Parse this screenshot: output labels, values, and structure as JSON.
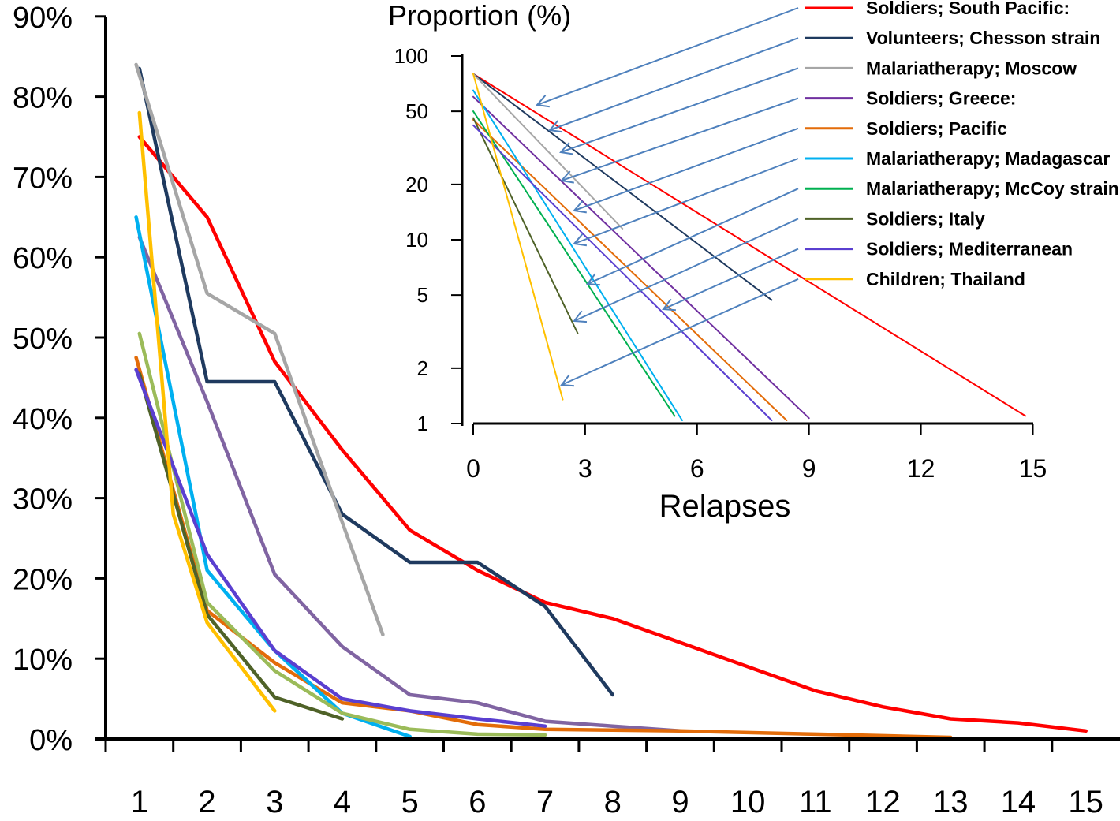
{
  "chart_data": [
    {
      "type": "line",
      "x_ticks": [
        1,
        2,
        3,
        4,
        5,
        6,
        7,
        8,
        9,
        10,
        11,
        12,
        13,
        14,
        15
      ],
      "y_ticks": [
        "0%",
        "10%",
        "20%",
        "30%",
        "40%",
        "50%",
        "60%",
        "70%",
        "80%",
        "90%"
      ],
      "ylim": [
        0,
        90
      ],
      "xlim": [
        0.5,
        15.5
      ],
      "series": [
        {
          "color": "#ff0000",
          "points": [
            [
              1,
              75
            ],
            [
              2,
              65
            ],
            [
              3,
              47
            ],
            [
              4,
              36
            ],
            [
              5,
              26
            ],
            [
              6,
              21
            ],
            [
              7,
              17
            ],
            [
              8,
              15
            ],
            [
              9,
              12
            ],
            [
              10,
              9
            ],
            [
              11,
              6
            ],
            [
              12,
              4
            ],
            [
              13,
              2.5
            ],
            [
              14,
              2
            ],
            [
              15,
              1
            ]
          ]
        },
        {
          "color": "#1f3a5f",
          "points": [
            [
              1,
              83.5
            ],
            [
              2,
              44.5
            ],
            [
              3,
              44.5
            ],
            [
              4,
              28
            ],
            [
              5,
              22
            ],
            [
              6,
              22
            ],
            [
              7,
              16.5
            ],
            [
              8,
              5.5
            ]
          ]
        },
        {
          "color": "#a6a6a6",
          "points": [
            [
              0.95,
              84
            ],
            [
              2,
              55.5
            ],
            [
              3,
              50.5
            ],
            [
              4,
              27
            ],
            [
              4.6,
              13
            ]
          ]
        },
        {
          "color": "#8064a2",
          "points": [
            [
              1,
              62.5
            ],
            [
              2,
              42
            ],
            [
              3,
              20.5
            ],
            [
              4,
              11.5
            ],
            [
              5,
              5.5
            ],
            [
              6,
              4.5
            ],
            [
              7,
              2.2
            ],
            [
              8,
              1.6
            ],
            [
              9,
              1
            ]
          ]
        },
        {
          "color": "#e36c09",
          "points": [
            [
              0.95,
              47.5
            ],
            [
              2,
              16
            ],
            [
              3,
              9.5
            ],
            [
              4,
              4.5
            ],
            [
              5,
              3.5
            ],
            [
              6,
              1.8
            ],
            [
              7,
              1.2
            ],
            [
              8,
              1.1
            ],
            [
              9,
              1
            ],
            [
              10,
              0.8
            ],
            [
              11,
              0.6
            ],
            [
              12,
              0.4
            ],
            [
              13,
              0.2
            ]
          ]
        },
        {
          "color": "#00b0f0",
          "points": [
            [
              0.95,
              65
            ],
            [
              2,
              21
            ],
            [
              3,
              11
            ],
            [
              4,
              3.2
            ],
            [
              5,
              0.3
            ]
          ]
        },
        {
          "color": "#9bbb59",
          "points": [
            [
              1,
              50.5
            ],
            [
              2,
              17
            ],
            [
              3,
              8.5
            ],
            [
              4,
              3.2
            ],
            [
              5,
              1.2
            ],
            [
              6,
              0.6
            ],
            [
              7,
              0.5
            ]
          ]
        },
        {
          "color": "#4f6228",
          "points": [
            [
              1,
              45.5
            ],
            [
              2,
              15.5
            ],
            [
              3,
              5.2
            ],
            [
              4,
              2.5
            ]
          ]
        },
        {
          "color": "#5a3fd0",
          "points": [
            [
              0.95,
              46
            ],
            [
              2,
              23
            ],
            [
              3,
              11
            ],
            [
              4,
              5
            ],
            [
              5,
              3.5
            ],
            [
              6,
              2.5
            ],
            [
              7,
              1.6
            ]
          ]
        },
        {
          "color": "#ffc000",
          "points": [
            [
              1,
              78
            ],
            [
              1.5,
              28
            ],
            [
              2,
              14.5
            ],
            [
              3,
              3.5
            ]
          ]
        }
      ]
    },
    {
      "type": "line",
      "title": "Proportion (%)",
      "xlabel": "Relapses",
      "x_ticks": [
        0,
        3,
        6,
        9,
        12,
        15
      ],
      "y_ticks": [
        "100",
        "50",
        "20",
        "10",
        "5",
        "2",
        "1"
      ],
      "y_scale": "log",
      "legend_position": "top-right",
      "series": [
        {
          "name": "Soldiers;  South Pacific:",
          "color": "#ff0000",
          "points": [
            [
              0,
              80
            ],
            [
              14.8,
              1.1
            ]
          ]
        },
        {
          "name": "Volunteers;  Chesson strain",
          "color": "#1f3a5f",
          "points": [
            [
              0,
              80
            ],
            [
              8,
              4.7
            ]
          ]
        },
        {
          "name": "Malariatherapy;  Moscow",
          "color": "#a6a6a6",
          "points": [
            [
              0,
              80
            ],
            [
              4,
              11.5
            ]
          ]
        },
        {
          "name": "Soldiers;  Greece:",
          "color": "#7030a0",
          "points": [
            [
              0,
              60
            ],
            [
              9,
              1.07
            ]
          ]
        },
        {
          "name": "Soldiers;  Pacific",
          "color": "#e36c09",
          "points": [
            [
              0,
              45
            ],
            [
              8.4,
              1.04
            ]
          ]
        },
        {
          "name": "Malariatherapy; Madagascar",
          "color": "#00b0f0",
          "points": [
            [
              0,
              65
            ],
            [
              5.6,
              1.04
            ]
          ]
        },
        {
          "name": "Malariatherapy; McCoy strain",
          "color": "#00b050",
          "points": [
            [
              0,
              50
            ],
            [
              5.4,
              1.1
            ]
          ]
        },
        {
          "name": "Soldiers; Italy",
          "color": "#4f6228",
          "points": [
            [
              0,
              46
            ],
            [
              2.8,
              3.1
            ]
          ]
        },
        {
          "name": "Soldiers; Mediterranean",
          "color": "#5a3fd0",
          "points": [
            [
              0,
              42
            ],
            [
              8.0,
              1.04
            ]
          ]
        },
        {
          "name": "Children; Thailand",
          "color": "#ffc000",
          "points": [
            [
              0,
              80
            ],
            [
              2.4,
              1.35
            ]
          ]
        }
      ]
    }
  ]
}
